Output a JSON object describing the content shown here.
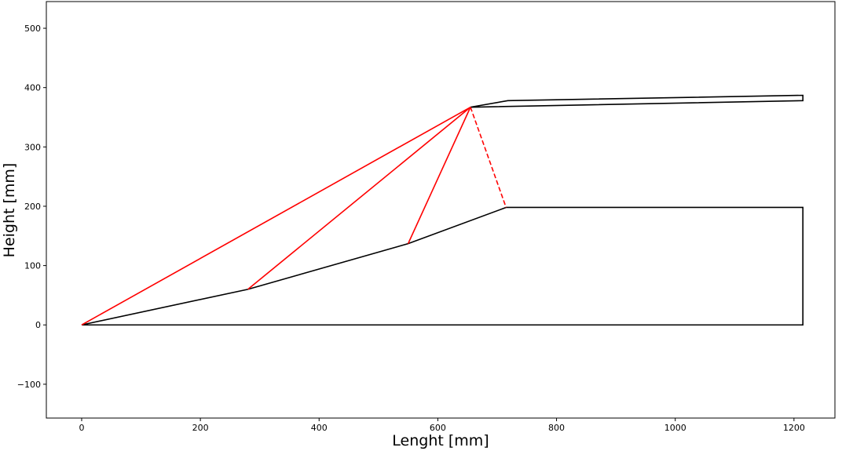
{
  "chart_data": {
    "type": "line",
    "xlabel": "Lenght [mm]",
    "ylabel": "Height [mm]",
    "xlim": [
      -59.5,
      1269
    ],
    "ylim": [
      -157,
      545
    ],
    "xticks": [
      0,
      200,
      400,
      600,
      800,
      1000,
      1200
    ],
    "yticks": [
      {
        "value": -100,
        "label": "−100"
      },
      0,
      100,
      200,
      300,
      400,
      500
    ],
    "series": [
      {
        "color": "#000000",
        "linestyle": "solid",
        "x": [
          0,
          280,
          550,
          715,
          1215,
          1215,
          0
        ],
        "values": [
          0,
          60,
          137,
          198,
          198,
          0,
          0
        ]
      },
      {
        "color": "#000000",
        "linestyle": "solid",
        "x": [
          655,
          718,
          1215,
          1215,
          655
        ],
        "values": [
          367,
          378,
          387,
          378,
          367
        ]
      },
      {
        "color": "#ff0000",
        "linestyle": "solid",
        "x": [
          0,
          655
        ],
        "values": [
          0,
          367
        ]
      },
      {
        "color": "#ff0000",
        "linestyle": "solid",
        "x": [
          280,
          655
        ],
        "values": [
          60,
          367
        ]
      },
      {
        "color": "#ff0000",
        "linestyle": "solid",
        "x": [
          550,
          655
        ],
        "values": [
          137,
          367
        ]
      },
      {
        "color": "#ff0000",
        "linestyle": "dashed",
        "x": [
          655,
          715
        ],
        "values": [
          367,
          198
        ]
      }
    ]
  }
}
